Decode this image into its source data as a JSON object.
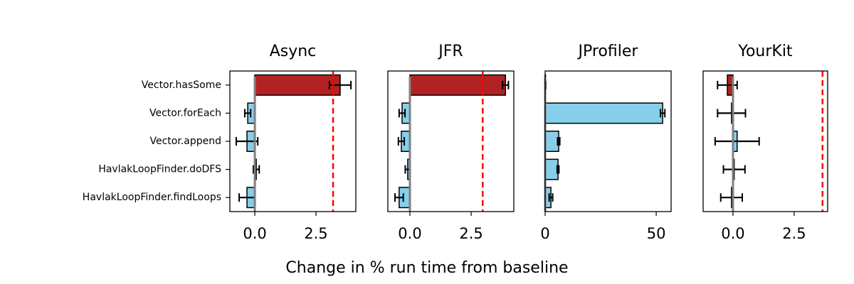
{
  "chart_data": [
    {
      "type": "bar",
      "orientation": "horizontal",
      "title": "Async",
      "categories": [
        "Vector.hasSome",
        "Vector.forEach",
        "Vector.append",
        "HavlakLoopFinder.doDFS",
        "HavlakLoopFinder.findLoops"
      ],
      "values": [
        3.49,
        -0.29,
        -0.32,
        0.06,
        -0.32
      ],
      "errors": [
        0.44,
        0.12,
        0.44,
        0.12,
        0.32
      ],
      "colors": [
        "#b22222",
        "#87ceeb",
        "#87ceeb",
        "#87ceeb",
        "#87ceeb"
      ],
      "xlim": [
        -1.02,
        4.13
      ],
      "xticks": [
        {
          "value": 0,
          "label": "0.0"
        },
        {
          "value": 2.5,
          "label": "2.5"
        }
      ],
      "threshold": 3.2
    },
    {
      "type": "bar",
      "orientation": "horizontal",
      "title": "JFR",
      "values": [
        3.9,
        -0.32,
        -0.35,
        -0.09,
        -0.44
      ],
      "errors": [
        0.12,
        0.12,
        0.12,
        0.1,
        0.17
      ],
      "colors": [
        "#b22222",
        "#87ceeb",
        "#87ceeb",
        "#87ceeb",
        "#87ceeb"
      ],
      "xlim": [
        -0.9,
        4.24
      ],
      "xticks": [
        {
          "value": 0,
          "label": "0.0"
        },
        {
          "value": 2.5,
          "label": "2.5"
        }
      ],
      "threshold": 2.97
    },
    {
      "type": "bar",
      "orientation": "horizontal",
      "title": "JProfiler",
      "values": [
        0.2,
        52.9,
        6.1,
        5.8,
        2.6
      ],
      "errors": [
        0.1,
        1,
        0.5,
        0.4,
        0.8
      ],
      "colors": [
        "#87ceeb",
        "#87ceeb",
        "#87ceeb",
        "#87ceeb",
        "#87ceeb"
      ],
      "xlim": [
        0,
        56.7
      ],
      "xticks": [
        0,
        50
      ]
    },
    {
      "type": "bar",
      "orientation": "horizontal",
      "title": "YourKit",
      "values": [
        -0.23,
        -0.06,
        0.17,
        0.05,
        -0.06
      ],
      "errors": [
        0.4,
        0.57,
        0.9,
        0.44,
        0.44
      ],
      "colors": [
        "#b22222",
        "#87ceeb",
        "#87ceeb",
        "#87ceeb",
        "#87ceeb"
      ],
      "xlim": [
        -1.22,
        3.87
      ],
      "xticks": [
        {
          "value": 0,
          "label": "0.0"
        },
        {
          "value": 2.5,
          "label": "2.5"
        }
      ],
      "threshold": 3.66
    }
  ],
  "xlabel": "Change in % run time from baseline"
}
